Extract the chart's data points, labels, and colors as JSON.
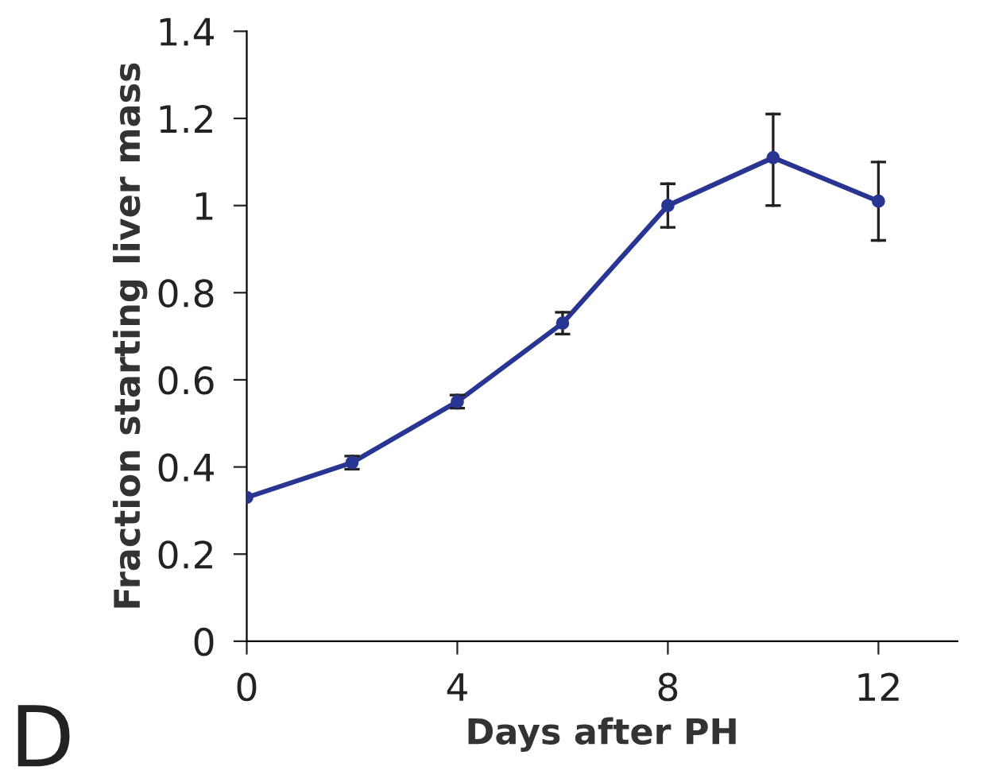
{
  "chart_data": {
    "type": "line",
    "xlabel": "Days after PH",
    "ylabel": "Fraction starting liver mass",
    "x": [
      0,
      2,
      4,
      6,
      8,
      10,
      12
    ],
    "series": [
      {
        "color": "#283593",
        "values": [
          0.33,
          0.41,
          0.55,
          0.73,
          1.0,
          1.11,
          1.01
        ],
        "errors": [
          null,
          0.015,
          0.015,
          0.025,
          [
            0.95,
            1.05
          ],
          [
            1.0,
            1.21
          ],
          [
            0.92,
            1.1
          ]
        ]
      }
    ],
    "marker": "circle",
    "line_style": "solid",
    "grid": false,
    "legend": false,
    "xlim": [
      0,
      13.5
    ],
    "xticks": [
      0,
      4,
      8,
      12
    ],
    "ylim": [
      0,
      1.4
    ],
    "yticks": [
      0,
      0.2,
      0.4,
      0.6,
      0.8,
      1,
      1.2,
      1.4
    ],
    "annotations": [
      "D"
    ]
  }
}
